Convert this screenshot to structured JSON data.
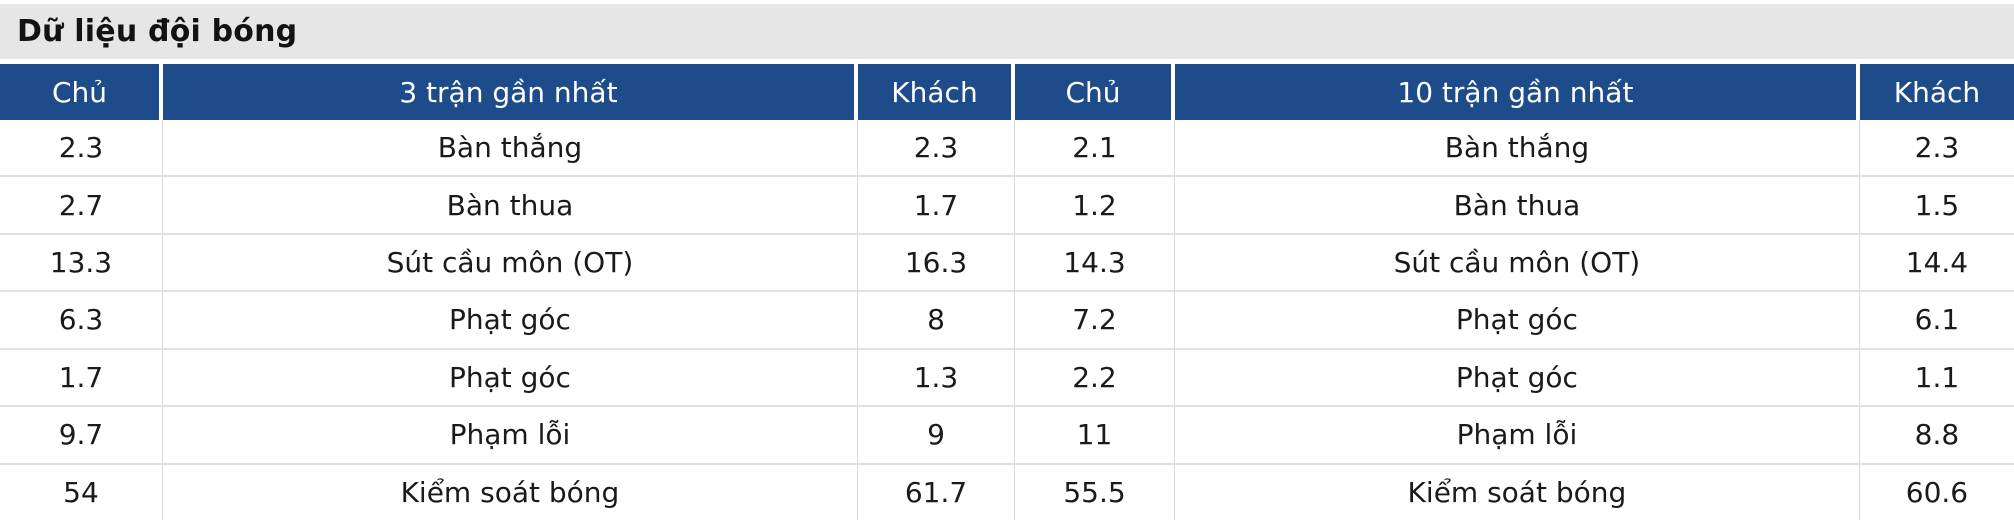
{
  "section": {
    "title": "Dữ liệu đội bóng"
  },
  "table": {
    "headers": [
      "Chủ",
      "3 trận gần nhất",
      "Khách",
      "Chủ",
      "10 trận gần nhất",
      "Khách"
    ],
    "rows": [
      [
        "2.3",
        "Bàn thắng",
        "2.3",
        "2.1",
        "Bàn thắng",
        "2.3"
      ],
      [
        "2.7",
        "Bàn thua",
        "1.7",
        "1.2",
        "Bàn thua",
        "1.5"
      ],
      [
        "13.3",
        "Sút cầu môn (OT)",
        "16.3",
        "14.3",
        "Sút cầu môn (OT)",
        "14.4"
      ],
      [
        "6.3",
        "Phạt góc",
        "8",
        "7.2",
        "Phạt góc",
        "6.1"
      ],
      [
        "1.7",
        "Phạt góc",
        "1.3",
        "2.2",
        "Phạt góc",
        "1.1"
      ],
      [
        "9.7",
        "Phạm lỗi",
        "9",
        "11",
        "Phạm lỗi",
        "8.8"
      ],
      [
        "54",
        "Kiểm soát bóng",
        "61.7",
        "55.5",
        "Kiểm soát bóng",
        "60.6"
      ]
    ]
  },
  "colors": {
    "header_bg": "#1e4b8a",
    "header_text": "#ffffff",
    "title_bar_bg": "#e6e6e6",
    "body_text": "#1a1a1a",
    "row_divider": "#e0e0e0",
    "column_divider": "#d8d8d8"
  }
}
